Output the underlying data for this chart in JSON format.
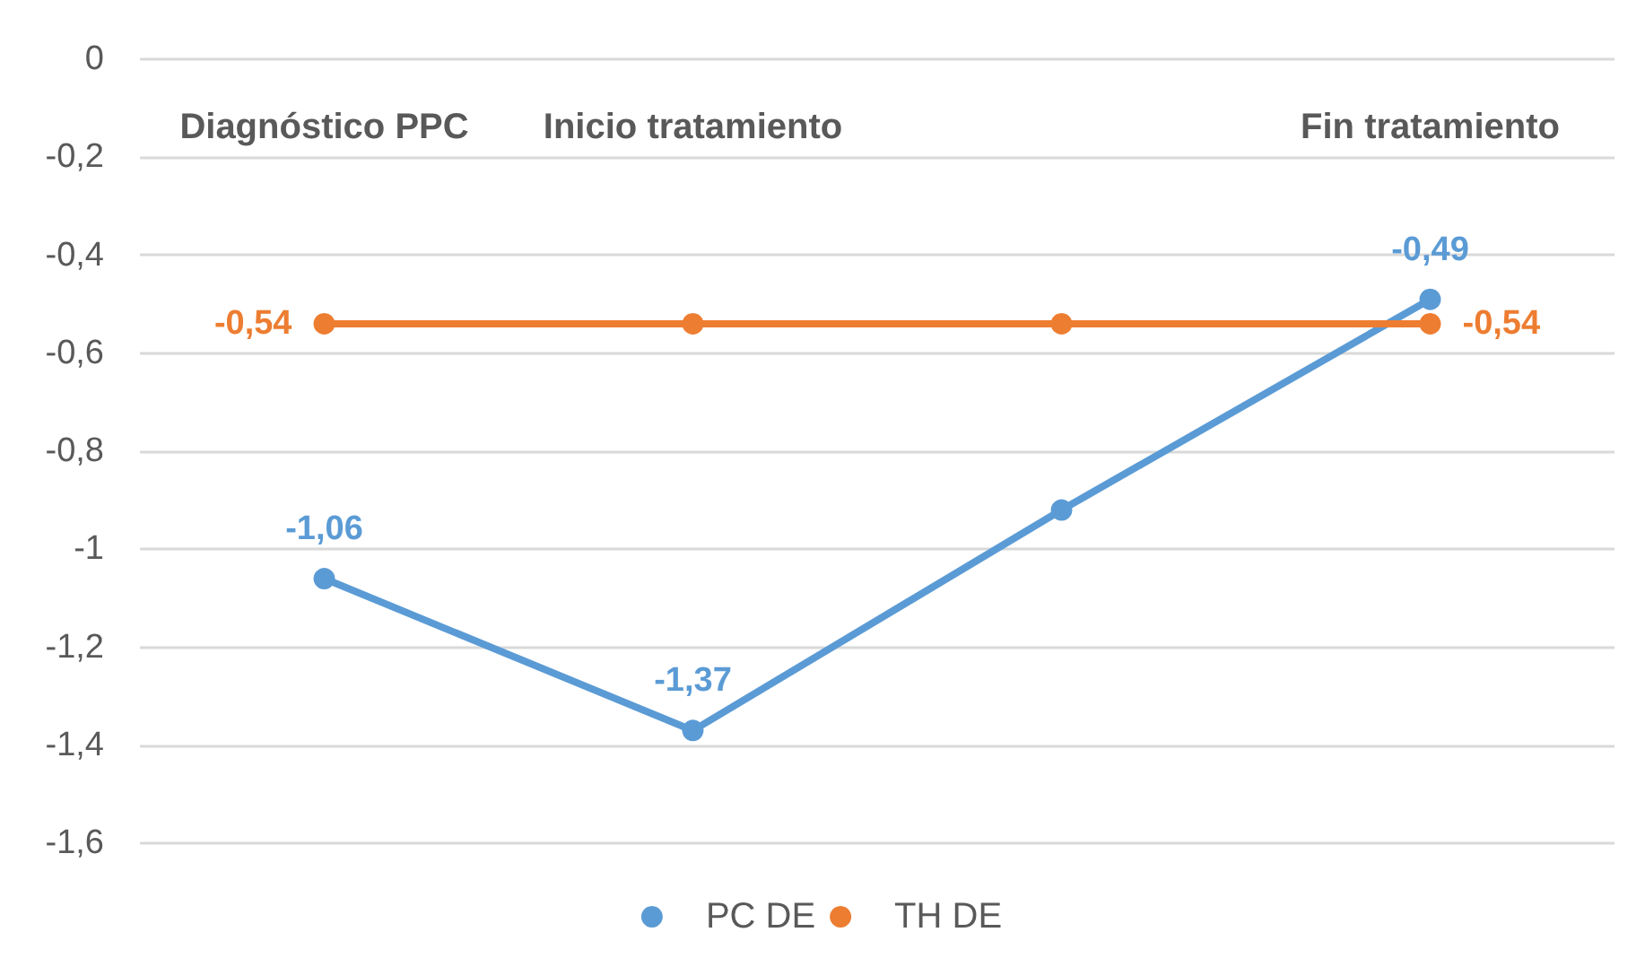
{
  "chart_data": {
    "type": "line",
    "categories": [
      "Diagnóstico PPC",
      "Inicio tratamiento",
      null,
      "Fin tratamiento"
    ],
    "series": [
      {
        "name": "PC DE",
        "color": "#5b9bd5",
        "values": [
          -1.06,
          -1.37,
          -0.92,
          -0.49
        ],
        "value_labels": [
          "-1,06",
          "-1,37",
          null,
          "-0,49"
        ]
      },
      {
        "name": "TH DE",
        "color": "#ed7d31",
        "values": [
          -0.54,
          -0.54,
          -0.54,
          -0.54
        ],
        "value_labels": [
          "-0,54",
          null,
          null,
          "-0,54"
        ]
      }
    ],
    "ylim": [
      -1.6,
      0
    ],
    "yticks": [
      {
        "value": 0,
        "label": "0"
      },
      {
        "value": -0.2,
        "label": "-0,2"
      },
      {
        "value": -0.4,
        "label": "-0,4"
      },
      {
        "value": -0.6,
        "label": "-0,6"
      },
      {
        "value": -0.8,
        "label": "-0,8"
      },
      {
        "value": -1,
        "label": "-1"
      },
      {
        "value": -1.2,
        "label": "-1,2"
      },
      {
        "value": -1.4,
        "label": "-1,4"
      },
      {
        "value": -1.6,
        "label": "-1,6"
      }
    ],
    "grid": "y",
    "legend": "bottom",
    "marker": "circle",
    "line_style": "solid"
  }
}
